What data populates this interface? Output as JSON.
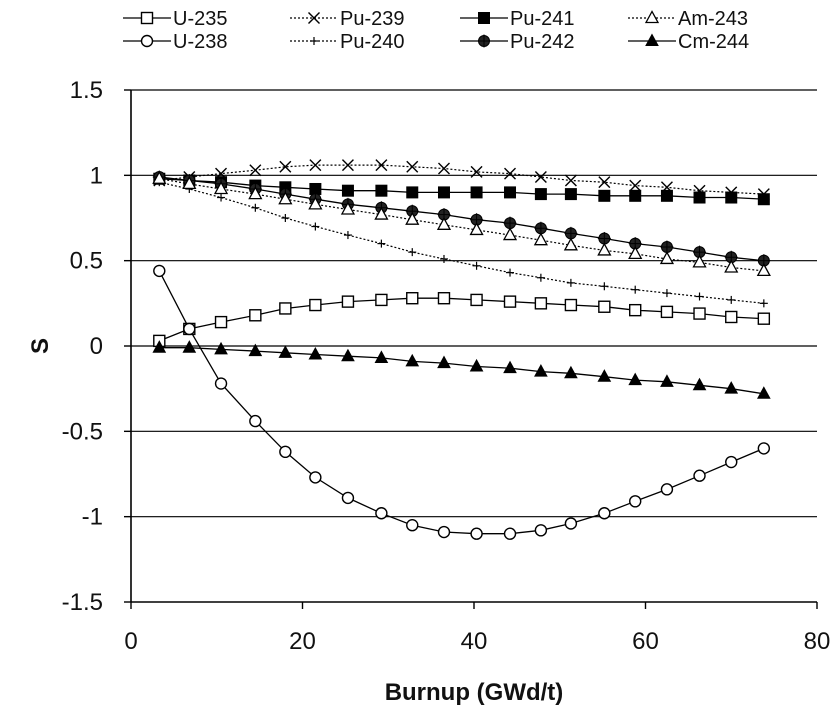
{
  "chart_data": {
    "type": "line",
    "title": "",
    "xlabel": "Burnup (GWd/t)",
    "ylabel": "S",
    "xlim": [
      0,
      80
    ],
    "ylim": [
      -1.5,
      1.5
    ],
    "x_ticks": [
      "0",
      "20",
      "40",
      "60",
      "80"
    ],
    "y_ticks": [
      "1.5",
      "1",
      "0.5",
      "0",
      "-0.5",
      "-1",
      "-1.5"
    ],
    "grid": "horizontal",
    "legend_position": "top",
    "x": [
      3.3,
      6.8,
      10.5,
      14.5,
      18,
      21.5,
      25.3,
      29.2,
      32.8,
      36.5,
      40.3,
      44.2,
      47.8,
      51.3,
      55.2,
      58.8,
      62.5,
      66.3,
      70,
      73.8
    ],
    "series": [
      {
        "name": "U-235",
        "marker": "square-open",
        "line": "solid",
        "color": "#000000",
        "values": [
          0.03,
          0.1,
          0.14,
          0.18,
          0.22,
          0.24,
          0.26,
          0.27,
          0.28,
          0.28,
          0.27,
          0.26,
          0.25,
          0.24,
          0.23,
          0.21,
          0.2,
          0.19,
          0.17,
          0.16
        ]
      },
      {
        "name": "U-238",
        "marker": "circle-open",
        "line": "solid",
        "color": "#000000",
        "values": [
          0.44,
          0.1,
          -0.22,
          -0.44,
          -0.62,
          -0.77,
          -0.89,
          -0.98,
          -1.05,
          -1.09,
          -1.1,
          -1.1,
          -1.08,
          -1.04,
          -0.98,
          -0.91,
          -0.84,
          -0.76,
          -0.68,
          -0.6
        ]
      },
      {
        "name": "Pu-239",
        "marker": "x",
        "line": "dotted",
        "color": "#000000",
        "values": [
          0.97,
          0.99,
          1.01,
          1.03,
          1.05,
          1.06,
          1.06,
          1.06,
          1.05,
          1.04,
          1.02,
          1.01,
          0.99,
          0.97,
          0.96,
          0.94,
          0.93,
          0.91,
          0.9,
          0.89
        ]
      },
      {
        "name": "Pu-240",
        "marker": "plus",
        "line": "dotted",
        "color": "#000000",
        "values": [
          0.96,
          0.92,
          0.87,
          0.81,
          0.75,
          0.7,
          0.65,
          0.6,
          0.55,
          0.51,
          0.47,
          0.43,
          0.4,
          0.37,
          0.35,
          0.33,
          0.31,
          0.29,
          0.27,
          0.25
        ]
      },
      {
        "name": "Pu-241",
        "marker": "square-filled",
        "line": "solid",
        "color": "#000000",
        "values": [
          0.98,
          0.97,
          0.96,
          0.94,
          0.93,
          0.92,
          0.91,
          0.91,
          0.9,
          0.9,
          0.9,
          0.9,
          0.89,
          0.89,
          0.88,
          0.88,
          0.88,
          0.87,
          0.87,
          0.86
        ]
      },
      {
        "name": "Pu-242",
        "marker": "circle-filled",
        "line": "solid",
        "color": "#000000",
        "values": [
          0.99,
          0.97,
          0.95,
          0.92,
          0.89,
          0.86,
          0.83,
          0.81,
          0.79,
          0.77,
          0.74,
          0.72,
          0.69,
          0.66,
          0.63,
          0.6,
          0.58,
          0.55,
          0.52,
          0.5
        ]
      },
      {
        "name": "Am-243",
        "marker": "triangle-open",
        "line": "dotted",
        "color": "#000000",
        "values": [
          0.98,
          0.95,
          0.92,
          0.89,
          0.86,
          0.83,
          0.8,
          0.77,
          0.74,
          0.71,
          0.68,
          0.65,
          0.62,
          0.59,
          0.56,
          0.54,
          0.51,
          0.49,
          0.46,
          0.44
        ]
      },
      {
        "name": "Cm-244",
        "marker": "triangle-filled",
        "line": "solid",
        "color": "#000000",
        "values": [
          -0.01,
          -0.01,
          -0.02,
          -0.03,
          -0.04,
          -0.05,
          -0.06,
          -0.07,
          -0.09,
          -0.1,
          -0.12,
          -0.13,
          -0.15,
          -0.16,
          -0.18,
          -0.2,
          -0.21,
          -0.23,
          -0.25,
          -0.28
        ]
      }
    ]
  }
}
